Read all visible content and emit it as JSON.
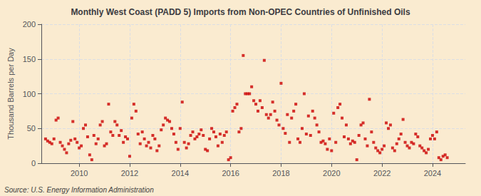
{
  "chart_data": {
    "type": "scatter",
    "title": "Monthly West Coast (PADD 5) Imports from Non-OPEC Countries of Unfinished Oils",
    "ylabel": "Thousand Barrels per Day",
    "annotations": [
      "Source: U.S. Energy Information Administration"
    ],
    "color": "#cc0000",
    "marker": "square",
    "grid": true,
    "xlim": [
      2008.5,
      2025.3
    ],
    "xticks": [
      2010,
      2012,
      2014,
      2016,
      2018,
      2020,
      2022,
      2024
    ],
    "ylim": [
      0,
      200
    ],
    "yticks": [
      0,
      50,
      100,
      150,
      200
    ],
    "x": [
      2008.6666666666667,
      2008.75,
      2008.8333333333333,
      2008.9166666666667,
      2009,
      2009.0833333333333,
      2009.1666666666667,
      2009.25,
      2009.3333333333333,
      2009.4166666666667,
      2009.5,
      2009.5833333333333,
      2009.6666666666667,
      2009.75,
      2009.8333333333333,
      2009.9166666666667,
      2010,
      2010.0833333333333,
      2010.1666666666667,
      2010.25,
      2010.3333333333333,
      2010.4166666666667,
      2010.5,
      2010.5833333333333,
      2010.6666666666667,
      2010.75,
      2010.8333333333333,
      2010.9166666666667,
      2011,
      2011.0833333333333,
      2011.1666666666667,
      2011.25,
      2011.3333333333333,
      2011.4166666666667,
      2011.5,
      2011.5833333333333,
      2011.6666666666667,
      2011.75,
      2011.8333333333333,
      2011.9166666666667,
      2012,
      2012.0833333333333,
      2012.1666666666667,
      2012.25,
      2012.3333333333333,
      2012.4166666666667,
      2012.5,
      2012.5833333333333,
      2012.6666666666667,
      2012.75,
      2012.8333333333333,
      2012.9166666666667,
      2013,
      2013.0833333333333,
      2013.1666666666667,
      2013.25,
      2013.3333333333333,
      2013.4166666666667,
      2013.5,
      2013.5833333333333,
      2013.6666666666667,
      2013.75,
      2013.8333333333333,
      2013.9166666666667,
      2014,
      2014.0833333333333,
      2014.1666666666667,
      2014.25,
      2014.3333333333333,
      2014.4166666666667,
      2014.5,
      2014.5833333333333,
      2014.6666666666667,
      2014.75,
      2014.8333333333333,
      2014.9166666666667,
      2015,
      2015.0833333333333,
      2015.1666666666667,
      2015.25,
      2015.3333333333333,
      2015.4166666666667,
      2015.5,
      2015.5833333333333,
      2015.6666666666667,
      2015.75,
      2015.8333333333333,
      2015.9166666666667,
      2016,
      2016.0833333333333,
      2016.1666666666667,
      2016.25,
      2016.3333333333333,
      2016.4166666666667,
      2016.5,
      2016.5833333333333,
      2016.6666666666667,
      2016.75,
      2016.8333333333333,
      2016.9166666666667,
      2017,
      2017.0833333333333,
      2017.1666666666667,
      2017.25,
      2017.3333333333333,
      2017.4166666666667,
      2017.5,
      2017.5833333333333,
      2017.6666666666667,
      2017.75,
      2017.8333333333333,
      2017.9166666666667,
      2018,
      2018.0833333333333,
      2018.1666666666667,
      2018.25,
      2018.3333333333333,
      2018.4166666666667,
      2018.5,
      2018.5833333333333,
      2018.6666666666667,
      2018.75,
      2018.8333333333333,
      2018.9166666666667,
      2019,
      2019.0833333333333,
      2019.1666666666667,
      2019.25,
      2019.3333333333333,
      2019.4166666666667,
      2019.5,
      2019.5833333333333,
      2019.6666666666667,
      2019.75,
      2019.8333333333333,
      2019.9166666666667,
      2020,
      2020.0833333333333,
      2020.1666666666667,
      2020.25,
      2020.3333333333333,
      2020.4166666666667,
      2020.5,
      2020.5833333333333,
      2020.6666666666667,
      2020.75,
      2020.8333333333333,
      2020.9166666666667,
      2021,
      2021.0833333333333,
      2021.1666666666667,
      2021.25,
      2021.3333333333333,
      2021.4166666666667,
      2021.5,
      2021.5833333333333,
      2021.6666666666667,
      2021.75,
      2021.8333333333333,
      2021.9166666666667,
      2022,
      2022.0833333333333,
      2022.1666666666667,
      2022.25,
      2022.3333333333333,
      2022.4166666666667,
      2022.5,
      2022.5833333333333,
      2022.6666666666667,
      2022.75,
      2022.8333333333333,
      2022.9166666666667,
      2023,
      2023.0833333333333,
      2023.1666666666667,
      2023.25,
      2023.3333333333333,
      2023.4166666666667,
      2023.5,
      2023.5833333333333,
      2023.6666666666667,
      2023.75,
      2023.8333333333333,
      2023.9166666666667,
      2024,
      2024.0833333333333,
      2024.1666666666667,
      2024.25,
      2024.3333333333333,
      2024.4166666666667,
      2024.5,
      2024.5833333333333
    ],
    "values": [
      35,
      32,
      30,
      28,
      35,
      62,
      65,
      30,
      25,
      20,
      15,
      28,
      33,
      60,
      35,
      30,
      22,
      25,
      50,
      55,
      38,
      12,
      5,
      40,
      28,
      35,
      55,
      60,
      25,
      28,
      85,
      45,
      40,
      60,
      55,
      40,
      47,
      30,
      38,
      35,
      10,
      65,
      85,
      75,
      42,
      28,
      45,
      35,
      25,
      30,
      22,
      40,
      35,
      18,
      25,
      48,
      55,
      65,
      62,
      60,
      50,
      42,
      30,
      20,
      50,
      88,
      30,
      22,
      28,
      40,
      45,
      35,
      38,
      42,
      48,
      40,
      20,
      18,
      35,
      50,
      45,
      38,
      25,
      42,
      30,
      40,
      45,
      5,
      8,
      75,
      80,
      85,
      45,
      50,
      155,
      100,
      100,
      100,
      110,
      90,
      85,
      75,
      90,
      80,
      148,
      70,
      65,
      70,
      88,
      75,
      62,
      55,
      115,
      50,
      43,
      70,
      30,
      65,
      75,
      85,
      35,
      30,
      50,
      100,
      42,
      68,
      40,
      75,
      65,
      55,
      45,
      30,
      32,
      28,
      20,
      35,
      18,
      72,
      30,
      80,
      85,
      65,
      38,
      55,
      35,
      28,
      32,
      30,
      5,
      40,
      55,
      58,
      35,
      25,
      92,
      45,
      30,
      22,
      18,
      15,
      20,
      25,
      58,
      50,
      55,
      22,
      18,
      28,
      35,
      42,
      63,
      30,
      25,
      22,
      30,
      28,
      42,
      38,
      25,
      22,
      18,
      15,
      20,
      35,
      40,
      35,
      45,
      8,
      5,
      10,
      12,
      8
    ]
  }
}
